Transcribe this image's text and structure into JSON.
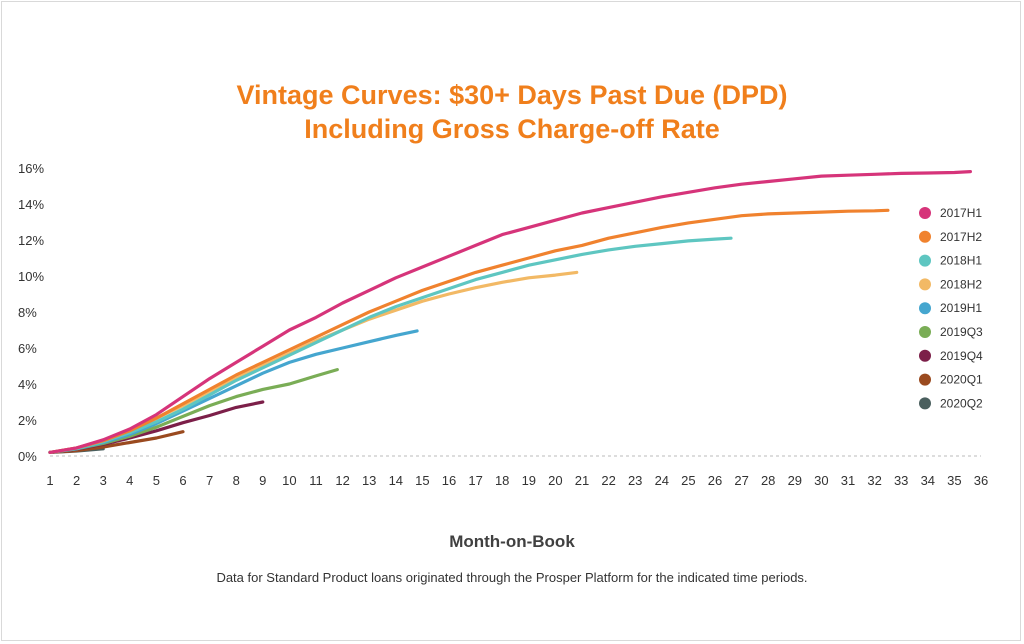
{
  "chart_data": {
    "type": "line",
    "title_line1": "Vintage Curves: $30+ Days Past Due (DPD)",
    "title_line2": "Including Gross Charge-off Rate",
    "xlabel": "Month-on-Book",
    "caption": "Data for Standard Product loans originated through the Prosper Platform for the indicated time periods.",
    "xlim": [
      1,
      36
    ],
    "ylim": [
      0,
      16
    ],
    "x_ticks": [
      1,
      2,
      3,
      4,
      5,
      6,
      7,
      8,
      9,
      10,
      11,
      12,
      13,
      14,
      15,
      16,
      17,
      18,
      19,
      20,
      21,
      22,
      23,
      24,
      25,
      26,
      27,
      28,
      29,
      30,
      31,
      32,
      33,
      34,
      35,
      36
    ],
    "y_ticks": [
      0,
      2,
      4,
      6,
      8,
      10,
      12,
      14,
      16
    ],
    "y_tick_labels": [
      "0%",
      "2%",
      "4%",
      "6%",
      "8%",
      "10%",
      "12%",
      "14%",
      "16%"
    ],
    "zero_line": "dotted",
    "legend_position": "right",
    "series": [
      {
        "name": "2017H1",
        "color": "#d6347a",
        "x": [
          1,
          2,
          3,
          4,
          5,
          6,
          7,
          8,
          9,
          10,
          11,
          12,
          13,
          14,
          15,
          16,
          17,
          18,
          19,
          20,
          21,
          22,
          23,
          24,
          25,
          26,
          27,
          28,
          29,
          30,
          31,
          32,
          33,
          34,
          35,
          35.6
        ],
        "y": [
          0.2,
          0.45,
          0.9,
          1.5,
          2.3,
          3.3,
          4.3,
          5.2,
          6.1,
          7.0,
          7.7,
          8.5,
          9.2,
          9.9,
          10.5,
          11.1,
          11.7,
          12.3,
          12.7,
          13.1,
          13.5,
          13.8,
          14.1,
          14.4,
          14.65,
          14.9,
          15.1,
          15.25,
          15.4,
          15.55,
          15.6,
          15.65,
          15.7,
          15.72,
          15.75,
          15.8
        ]
      },
      {
        "name": "2017H2",
        "color": "#f0822e",
        "x": [
          1,
          2,
          3,
          4,
          5,
          6,
          7,
          8,
          9,
          10,
          11,
          12,
          13,
          14,
          15,
          16,
          17,
          18,
          19,
          20,
          21,
          22,
          23,
          24,
          25,
          26,
          27,
          28,
          29,
          30,
          31,
          32,
          32.5
        ],
        "y": [
          0.2,
          0.45,
          0.85,
          1.4,
          2.1,
          2.9,
          3.7,
          4.5,
          5.2,
          5.9,
          6.6,
          7.3,
          8.0,
          8.6,
          9.2,
          9.7,
          10.2,
          10.6,
          11.0,
          11.4,
          11.7,
          12.1,
          12.4,
          12.7,
          12.95,
          13.15,
          13.35,
          13.45,
          13.5,
          13.55,
          13.6,
          13.62,
          13.65
        ]
      },
      {
        "name": "2018H1",
        "color": "#5ec6c1",
        "x": [
          1,
          2,
          3,
          4,
          5,
          6,
          7,
          8,
          9,
          10,
          11,
          12,
          13,
          14,
          15,
          16,
          17,
          18,
          19,
          20,
          21,
          22,
          23,
          24,
          25,
          26,
          26.6
        ],
        "y": [
          0.2,
          0.42,
          0.8,
          1.3,
          1.9,
          2.6,
          3.4,
          4.2,
          4.9,
          5.6,
          6.3,
          7.0,
          7.7,
          8.3,
          8.8,
          9.3,
          9.8,
          10.2,
          10.6,
          10.9,
          11.2,
          11.45,
          11.65,
          11.8,
          11.95,
          12.05,
          12.1
        ]
      },
      {
        "name": "2018H2",
        "color": "#f2b965",
        "x": [
          1,
          2,
          3,
          4,
          5,
          6,
          7,
          8,
          9,
          10,
          11,
          12,
          13,
          14,
          15,
          16,
          17,
          18,
          19,
          20,
          20.8
        ],
        "y": [
          0.2,
          0.45,
          0.85,
          1.4,
          2.1,
          2.8,
          3.6,
          4.3,
          5.0,
          5.7,
          6.4,
          7.0,
          7.6,
          8.1,
          8.6,
          9.0,
          9.35,
          9.65,
          9.9,
          10.05,
          10.2
        ]
      },
      {
        "name": "2019H1",
        "color": "#45a6cf",
        "x": [
          1,
          2,
          3,
          4,
          5,
          6,
          7,
          8,
          9,
          10,
          11,
          12,
          13,
          14,
          14.8
        ],
        "y": [
          0.2,
          0.4,
          0.75,
          1.2,
          1.8,
          2.5,
          3.2,
          3.9,
          4.6,
          5.2,
          5.65,
          6.0,
          6.35,
          6.7,
          6.95
        ]
      },
      {
        "name": "2019Q3",
        "color": "#7aad56",
        "x": [
          1,
          2,
          3,
          4,
          5,
          6,
          7,
          8,
          9,
          10,
          11,
          11.8
        ],
        "y": [
          0.2,
          0.4,
          0.7,
          1.1,
          1.6,
          2.2,
          2.8,
          3.3,
          3.7,
          4.0,
          4.45,
          4.8
        ]
      },
      {
        "name": "2019Q4",
        "color": "#7c1f49",
        "x": [
          1,
          2,
          3,
          4,
          5,
          6,
          7,
          8,
          9
        ],
        "y": [
          0.2,
          0.38,
          0.65,
          1.0,
          1.4,
          1.85,
          2.25,
          2.7,
          3.0
        ]
      },
      {
        "name": "2020Q1",
        "color": "#9a4a1f",
        "x": [
          1,
          2,
          3,
          4,
          5,
          6
        ],
        "y": [
          0.2,
          0.3,
          0.5,
          0.75,
          1.0,
          1.35
        ]
      },
      {
        "name": "2020Q2",
        "color": "#4a5f5e",
        "x": [
          1,
          2,
          3
        ],
        "y": [
          0.2,
          0.28,
          0.4
        ]
      }
    ]
  }
}
